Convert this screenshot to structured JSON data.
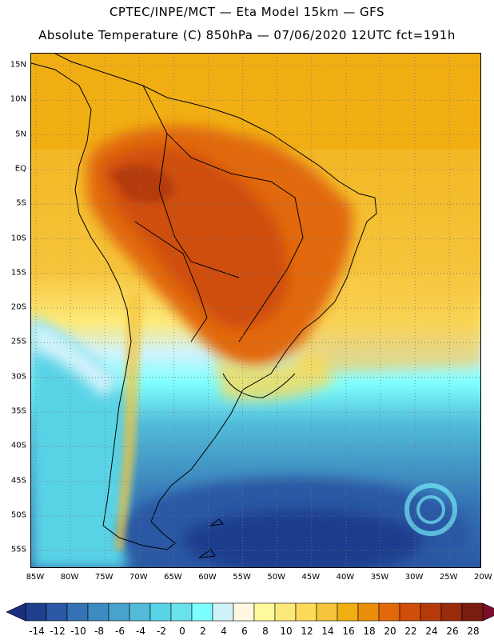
{
  "header": {
    "line1": "CPTEC/INPE/MCT —  Eta Model 15km — GFS",
    "line2": "Absolute Temperature (C) 850hPa — 07/06/2020 12UTC fct=191h"
  },
  "axes": {
    "lat_labels": [
      "15N",
      "10N",
      "5N",
      "EQ",
      "5S",
      "10S",
      "15S",
      "20S",
      "25S",
      "30S",
      "35S",
      "40S",
      "45S",
      "50S",
      "55S"
    ],
    "lon_labels": [
      "85W",
      "80W",
      "75W",
      "70W",
      "65W",
      "60W",
      "55W",
      "50W",
      "45W",
      "40W",
      "35W",
      "30W",
      "25W",
      "20W"
    ]
  },
  "colorbar": {
    "labels": [
      "-14",
      "-12",
      "-10",
      "-8",
      "-6",
      "-4",
      "-2",
      "0",
      "2",
      "4",
      "6",
      "8",
      "10",
      "12",
      "14",
      "16",
      "18",
      "20",
      "22",
      "24",
      "26",
      "28"
    ],
    "colors": [
      "#1f3e8e",
      "#2a58a4",
      "#3472b3",
      "#3e8bc2",
      "#48a3cc",
      "#51bbd9",
      "#58d3e6",
      "#68e3ee",
      "#7effff",
      "#d0f3fb",
      "#fff7e0",
      "#fef99a",
      "#fde97a",
      "#fbd959",
      "#f6c43b",
      "#f1ae13",
      "#ea8d0a",
      "#e2690a",
      "#cf4e08",
      "#b53a0a",
      "#992a0a",
      "#7a1c10"
    ],
    "underflow_color": "#1a2f7e",
    "overflow_color": "#7b0c2a"
  }
}
